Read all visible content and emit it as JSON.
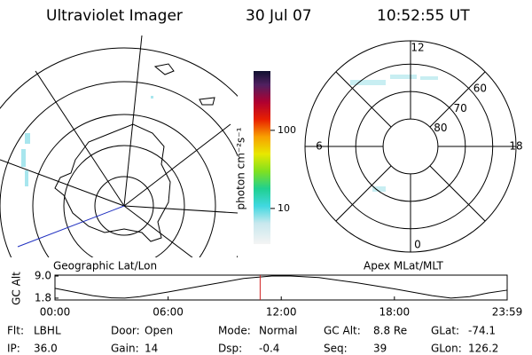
{
  "header": {
    "instrument": "Ultraviolet Imager",
    "date": "30 Jul 07",
    "time": "10:52:55 UT"
  },
  "colorbar": {
    "label": "photon cm⁻²s⁻¹",
    "lim": [
      3.5,
      575
    ],
    "ticks": [
      10,
      100
    ],
    "log": true
  },
  "geo_map": {
    "label": "Geographic Lat/Lon"
  },
  "polar": {
    "label": "Apex MLat/MLT",
    "mlat_lim": [
      90,
      51.5
    ],
    "mlat_ticks": [
      80,
      70,
      60
    ],
    "mlt_ticks": [
      12,
      18,
      6,
      0
    ]
  },
  "timeline": {
    "ylabel": "GC Alt",
    "ylim": [
      1.2,
      9.3
    ],
    "yticks": [
      {
        "value": 9.0,
        "label": "9.0"
      },
      {
        "value": 1.8,
        "label": "1.8"
      }
    ],
    "xlim": [
      0,
      23.98
    ],
    "xticks": [
      {
        "value": 0,
        "label": "00:00"
      },
      {
        "value": 6,
        "label": "06:00"
      },
      {
        "value": 12,
        "label": "12:00"
      },
      {
        "value": 18,
        "label": "18:00"
      },
      {
        "value": 23.98,
        "label": "23:59"
      }
    ],
    "x": [
      0,
      1,
      2,
      3,
      3.7,
      4.5,
      6,
      8,
      10,
      11.5,
      12.5,
      14,
      16,
      18,
      20,
      21,
      22,
      23,
      23.98
    ],
    "values": [
      5.0,
      3.8,
      2.6,
      1.9,
      1.8,
      2.3,
      3.8,
      6.0,
      8.2,
      9.0,
      9.0,
      8.5,
      6.8,
      4.8,
      2.6,
      1.8,
      2.3,
      3.5,
      4.4
    ],
    "marker": 10.88
  },
  "footer": {
    "rows": [
      [
        [
          "Flt:",
          "LBHL"
        ],
        [
          "Door:",
          "Open"
        ],
        [
          "Mode:",
          "Normal"
        ],
        [
          "GC Alt:",
          "8.8 Re"
        ],
        [
          "GLat:",
          "-74.1"
        ]
      ],
      [
        [
          "IP:",
          "36.0"
        ],
        [
          "Gain:",
          "14"
        ],
        [
          "Dsp:",
          "-0.4"
        ],
        [
          "Seq:",
          "39"
        ],
        [
          "GLon:",
          "126.2"
        ]
      ]
    ]
  }
}
